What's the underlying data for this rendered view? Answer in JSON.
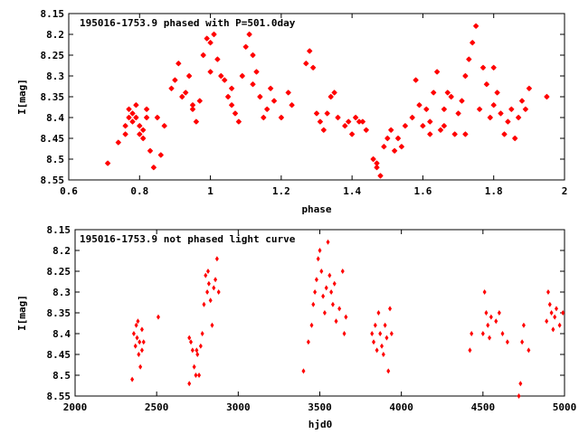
{
  "chart_data": [
    {
      "type": "scatter",
      "title": "195016-1753.9 phased with P=501.0day",
      "xlabel": "phase",
      "ylabel": "I[mag]",
      "xlim": [
        0.6,
        2.0
      ],
      "ylim": [
        8.15,
        8.55
      ],
      "y_inverted": true,
      "x_ticks": [
        0.6,
        0.8,
        1,
        1.2,
        1.4,
        1.6,
        1.8,
        2
      ],
      "y_ticks": [
        8.15,
        8.2,
        8.25,
        8.3,
        8.35,
        8.4,
        8.45,
        8.5,
        8.55
      ],
      "x_tick_labels": [
        "0.6",
        "0.8",
        "1",
        "1.2",
        "1.4",
        "1.6",
        "1.8",
        "2"
      ],
      "y_tick_labels": [
        "8.15",
        "8.2",
        "8.25",
        "8.3",
        "8.35",
        "8.4",
        "8.45",
        "8.5",
        "8.55"
      ],
      "grid": false,
      "legend": "none",
      "marker_color": "#ff0000",
      "marker": "star",
      "points": [
        [
          0.71,
          8.51
        ],
        [
          0.74,
          8.46
        ],
        [
          0.76,
          8.44
        ],
        [
          0.76,
          8.42
        ],
        [
          0.77,
          8.4
        ],
        [
          0.77,
          8.38
        ],
        [
          0.78,
          8.41
        ],
        [
          0.78,
          8.39
        ],
        [
          0.79,
          8.37
        ],
        [
          0.79,
          8.4
        ],
        [
          0.8,
          8.42
        ],
        [
          0.8,
          8.44
        ],
        [
          0.81,
          8.43
        ],
        [
          0.81,
          8.45
        ],
        [
          0.82,
          8.38
        ],
        [
          0.82,
          8.4
        ],
        [
          0.83,
          8.48
        ],
        [
          0.84,
          8.52
        ],
        [
          0.85,
          8.4
        ],
        [
          0.86,
          8.49
        ],
        [
          0.87,
          8.42
        ],
        [
          0.89,
          8.33
        ],
        [
          0.91,
          8.27
        ],
        [
          0.92,
          8.35
        ],
        [
          0.93,
          8.34
        ],
        [
          0.94,
          8.3
        ],
        [
          0.95,
          8.38
        ],
        [
          0.96,
          8.41
        ],
        [
          0.97,
          8.36
        ],
        [
          0.98,
          8.25
        ],
        [
          0.99,
          8.21
        ],
        [
          1.0,
          8.22
        ],
        [
          1.01,
          8.2
        ],
        [
          1.02,
          8.26
        ],
        [
          1.03,
          8.3
        ],
        [
          1.04,
          8.31
        ],
        [
          1.05,
          8.35
        ],
        [
          1.06,
          8.37
        ],
        [
          1.07,
          8.39
        ],
        [
          1.08,
          8.41
        ],
        [
          1.09,
          8.3
        ],
        [
          1.1,
          8.23
        ],
        [
          1.11,
          8.2
        ],
        [
          1.12,
          8.25
        ],
        [
          1.13,
          8.29
        ],
        [
          1.14,
          8.35
        ],
        [
          1.15,
          8.4
        ],
        [
          1.16,
          8.38
        ],
        [
          1.17,
          8.33
        ],
        [
          1.18,
          8.36
        ],
        [
          1.2,
          8.4
        ],
        [
          1.22,
          8.34
        ],
        [
          1.23,
          8.37
        ],
        [
          1.27,
          8.27
        ],
        [
          1.28,
          8.24
        ],
        [
          1.29,
          8.28
        ],
        [
          1.3,
          8.39
        ],
        [
          1.31,
          8.41
        ],
        [
          1.32,
          8.43
        ],
        [
          1.33,
          8.39
        ],
        [
          1.34,
          8.35
        ],
        [
          1.35,
          8.34
        ],
        [
          1.36,
          8.4
        ],
        [
          1.38,
          8.42
        ],
        [
          1.39,
          8.41
        ],
        [
          1.4,
          8.44
        ],
        [
          1.41,
          8.4
        ],
        [
          1.43,
          8.41
        ],
        [
          1.44,
          8.43
        ],
        [
          1.46,
          8.5
        ],
        [
          1.47,
          8.52
        ],
        [
          1.48,
          8.54
        ],
        [
          1.49,
          8.47
        ],
        [
          1.5,
          8.45
        ],
        [
          1.51,
          8.43
        ],
        [
          1.52,
          8.48
        ],
        [
          1.53,
          8.45
        ],
        [
          1.55,
          8.42
        ],
        [
          1.57,
          8.4
        ],
        [
          1.58,
          8.31
        ],
        [
          1.59,
          8.37
        ],
        [
          1.6,
          8.42
        ],
        [
          1.61,
          8.38
        ],
        [
          1.62,
          8.41
        ],
        [
          1.63,
          8.34
        ],
        [
          1.64,
          8.29
        ],
        [
          1.65,
          8.43
        ],
        [
          1.66,
          8.38
        ],
        [
          1.67,
          8.34
        ],
        [
          1.68,
          8.35
        ],
        [
          1.69,
          8.44
        ],
        [
          1.7,
          8.39
        ],
        [
          1.71,
          8.36
        ],
        [
          1.72,
          8.3
        ],
        [
          1.73,
          8.26
        ],
        [
          1.74,
          8.22
        ],
        [
          1.75,
          8.18
        ],
        [
          1.76,
          8.38
        ],
        [
          1.77,
          8.28
        ],
        [
          1.78,
          8.32
        ],
        [
          1.79,
          8.4
        ],
        [
          1.8,
          8.37
        ],
        [
          1.81,
          8.34
        ],
        [
          1.82,
          8.39
        ],
        [
          1.83,
          8.44
        ],
        [
          1.84,
          8.41
        ],
        [
          1.85,
          8.38
        ],
        [
          1.86,
          8.45
        ],
        [
          1.87,
          8.4
        ],
        [
          1.88,
          8.36
        ],
        [
          1.89,
          8.38
        ],
        [
          1.9,
          8.33
        ],
        [
          1.95,
          8.35
        ],
        [
          1.8,
          8.28
        ],
        [
          1.72,
          8.44
        ],
        [
          1.66,
          8.42
        ],
        [
          1.62,
          8.44
        ],
        [
          1.54,
          8.47
        ],
        [
          1.47,
          8.51
        ],
        [
          1.42,
          8.41
        ],
        [
          1.12,
          8.32
        ],
        [
          1.06,
          8.33
        ],
        [
          1.0,
          8.29
        ],
        [
          0.95,
          8.37
        ],
        [
          0.9,
          8.31
        ]
      ]
    },
    {
      "type": "scatter",
      "title": "195016-1753.9 not phased light curve",
      "xlabel": "hjd0",
      "ylabel": "I[mag]",
      "xlim": [
        2000,
        5000
      ],
      "ylim": [
        8.15,
        8.55
      ],
      "y_inverted": true,
      "x_ticks": [
        2000,
        2500,
        3000,
        3500,
        4000,
        4500,
        5000
      ],
      "y_ticks": [
        8.15,
        8.2,
        8.25,
        8.3,
        8.35,
        8.4,
        8.45,
        8.5,
        8.55
      ],
      "x_tick_labels": [
        "2000",
        "2500",
        "3000",
        "3500",
        "4000",
        "4500",
        "5000"
      ],
      "y_tick_labels": [
        "8.15",
        "8.2",
        "8.25",
        "8.3",
        "8.35",
        "8.4",
        "8.45",
        "8.5",
        "8.55"
      ],
      "grid": false,
      "legend": "none",
      "marker_color": "#ff0000",
      "marker": "diamond",
      "points": [
        [
          2350,
          8.51
        ],
        [
          2360,
          8.4
        ],
        [
          2370,
          8.43
        ],
        [
          2375,
          8.38
        ],
        [
          2380,
          8.41
        ],
        [
          2385,
          8.37
        ],
        [
          2390,
          8.45
        ],
        [
          2395,
          8.42
        ],
        [
          2400,
          8.48
        ],
        [
          2410,
          8.39
        ],
        [
          2420,
          8.42
        ],
        [
          2510,
          8.36
        ],
        [
          2700,
          8.41
        ],
        [
          2710,
          8.42
        ],
        [
          2720,
          8.44
        ],
        [
          2730,
          8.48
        ],
        [
          2740,
          8.5
        ],
        [
          2745,
          8.44
        ],
        [
          2750,
          8.45
        ],
        [
          2760,
          8.5
        ],
        [
          2770,
          8.43
        ],
        [
          2780,
          8.4
        ],
        [
          2790,
          8.33
        ],
        [
          2800,
          8.26
        ],
        [
          2810,
          8.3
        ],
        [
          2815,
          8.25
        ],
        [
          2820,
          8.28
        ],
        [
          2830,
          8.32
        ],
        [
          2840,
          8.38
        ],
        [
          2850,
          8.29
        ],
        [
          2860,
          8.27
        ],
        [
          2870,
          8.22
        ],
        [
          2880,
          8.3
        ],
        [
          3430,
          8.42
        ],
        [
          3450,
          8.38
        ],
        [
          3460,
          8.33
        ],
        [
          3470,
          8.3
        ],
        [
          3480,
          8.27
        ],
        [
          3490,
          8.22
        ],
        [
          3500,
          8.2
        ],
        [
          3510,
          8.25
        ],
        [
          3520,
          8.31
        ],
        [
          3530,
          8.35
        ],
        [
          3540,
          8.29
        ],
        [
          3550,
          8.18
        ],
        [
          3560,
          8.26
        ],
        [
          3570,
          8.3
        ],
        [
          3580,
          8.33
        ],
        [
          3590,
          8.28
        ],
        [
          3600,
          8.37
        ],
        [
          3620,
          8.34
        ],
        [
          3640,
          8.25
        ],
        [
          3650,
          8.4
        ],
        [
          3660,
          8.36
        ],
        [
          3820,
          8.4
        ],
        [
          3830,
          8.42
        ],
        [
          3840,
          8.38
        ],
        [
          3850,
          8.44
        ],
        [
          3860,
          8.35
        ],
        [
          3870,
          8.4
        ],
        [
          3880,
          8.43
        ],
        [
          3890,
          8.45
        ],
        [
          3900,
          8.38
        ],
        [
          3910,
          8.41
        ],
        [
          3920,
          8.49
        ],
        [
          3930,
          8.34
        ],
        [
          3940,
          8.4
        ],
        [
          4420,
          8.44
        ],
        [
          4430,
          8.4
        ],
        [
          4500,
          8.4
        ],
        [
          4510,
          8.3
        ],
        [
          4520,
          8.35
        ],
        [
          4530,
          8.38
        ],
        [
          4540,
          8.41
        ],
        [
          4550,
          8.36
        ],
        [
          4580,
          8.37
        ],
        [
          4600,
          8.35
        ],
        [
          4620,
          8.4
        ],
        [
          4650,
          8.42
        ],
        [
          4720,
          8.55
        ],
        [
          4730,
          8.52
        ],
        [
          4740,
          8.42
        ],
        [
          4750,
          8.38
        ],
        [
          4780,
          8.44
        ],
        [
          4890,
          8.37
        ],
        [
          4900,
          8.3
        ],
        [
          4910,
          8.33
        ],
        [
          4920,
          8.35
        ],
        [
          4930,
          8.39
        ],
        [
          4940,
          8.36
        ],
        [
          4950,
          8.34
        ],
        [
          4970,
          8.38
        ],
        [
          4990,
          8.35
        ],
        [
          3400,
          8.49
        ],
        [
          2700,
          8.52
        ],
        [
          2410,
          8.44
        ]
      ]
    }
  ]
}
